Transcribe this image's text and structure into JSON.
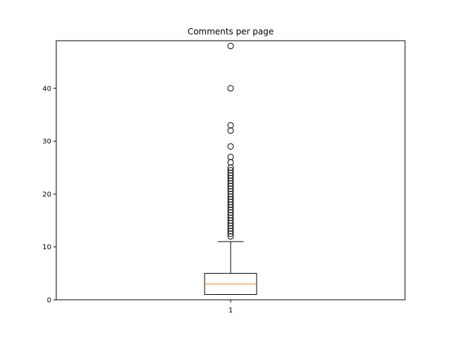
{
  "chart_data": {
    "type": "boxplot",
    "title": "Comments per page",
    "xlabel": "",
    "ylabel": "",
    "ylim": [
      0,
      49
    ],
    "yticks": [
      0,
      10,
      20,
      30,
      40
    ],
    "grid": false,
    "boxes": [
      {
        "label": "1",
        "min": 1,
        "q1": 1,
        "median": 3,
        "q3": 5,
        "max": 11,
        "outliers": [
          12,
          12.5,
          13,
          13.5,
          14,
          14.5,
          15,
          15.5,
          16,
          16.5,
          17,
          17.5,
          18,
          18.5,
          19,
          19.5,
          20,
          20.5,
          21,
          21.5,
          22,
          22.5,
          23,
          23.5,
          24,
          24.5,
          25,
          26,
          27,
          29,
          32,
          33,
          40,
          48
        ]
      }
    ],
    "colors": {
      "box": "#000000",
      "median": "#ff7f0e",
      "outlier": "#000000"
    }
  }
}
